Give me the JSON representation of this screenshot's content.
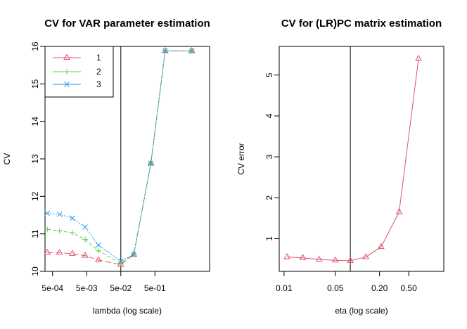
{
  "chart_data": [
    {
      "type": "line",
      "title": "CV for VAR parameter estimation",
      "xlabel": "lambda (log scale)",
      "ylabel": "CV",
      "xscale": "log",
      "xlim": [
        0.0003,
        20
      ],
      "ylim": [
        10,
        16
      ],
      "xticks": [
        0.0005,
        0.005,
        0.05,
        0.5
      ],
      "xtick_labels": [
        "5e-04",
        "5e-03",
        "5e-02",
        "5e-01"
      ],
      "yticks": [
        10,
        11,
        12,
        13,
        14,
        15,
        16
      ],
      "ytick_labels": [
        "10",
        "11",
        "12",
        "13",
        "14",
        "15",
        "16"
      ],
      "vline": 0.05,
      "legend_position": "top-left",
      "x": [
        0.00035,
        0.0008,
        0.0019,
        0.0045,
        0.011,
        0.05,
        0.12,
        0.38,
        1.0,
        6.0
      ],
      "series": [
        {
          "name": "1",
          "color": "#DF536B",
          "marker": "triangle",
          "dash": "8,4",
          "values": [
            10.5,
            10.5,
            10.47,
            10.42,
            10.3,
            10.18,
            10.45,
            12.88,
            15.88,
            15.88
          ]
        },
        {
          "name": "2",
          "color": "#61D04F",
          "marker": "plus",
          "dash": "5,3",
          "values": [
            11.12,
            11.08,
            11.03,
            10.85,
            10.55,
            10.22,
            10.45,
            12.88,
            15.88,
            15.88
          ]
        },
        {
          "name": "3",
          "color": "#2297E6",
          "marker": "cross",
          "dash": "2,2",
          "values": [
            11.55,
            11.52,
            11.42,
            11.18,
            10.7,
            10.27,
            10.45,
            12.88,
            15.88,
            15.88
          ]
        }
      ]
    },
    {
      "type": "line",
      "title": "CV for (LR)PC matrix estimation",
      "xlabel": "eta (log scale)",
      "ylabel": "CV error",
      "xscale": "log",
      "xlim": [
        0.0086,
        1.5
      ],
      "ylim": [
        0.2,
        5.7
      ],
      "xticks": [
        0.01,
        0.05,
        0.2,
        0.5
      ],
      "xtick_labels": [
        "0.01",
        "0.05",
        "0.20",
        "0.50"
      ],
      "yticks": [
        1,
        2,
        3,
        4,
        5
      ],
      "ytick_labels": [
        "1",
        "2",
        "3",
        "4",
        "5"
      ],
      "vline": 0.08,
      "x": [
        0.011,
        0.018,
        0.03,
        0.05,
        0.08,
        0.13,
        0.21,
        0.37,
        0.68
      ],
      "series": [
        {
          "name": "CV error",
          "color": "#DF536B",
          "marker": "triangle",
          "dash": "",
          "values": [
            0.55,
            0.53,
            0.49,
            0.47,
            0.46,
            0.55,
            0.8,
            1.65,
            5.4
          ]
        }
      ]
    }
  ]
}
